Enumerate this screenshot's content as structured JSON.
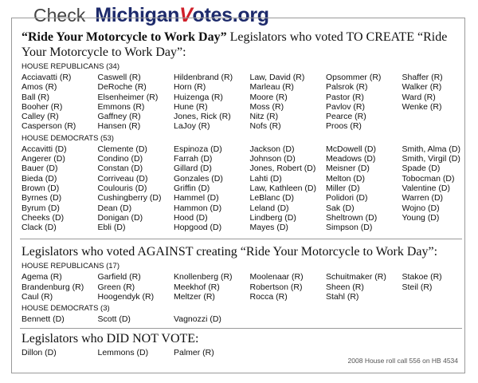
{
  "header": {
    "check": "Check",
    "brand_pre": "Michigan",
    "brand_v": "V",
    "brand_post": "otes.org"
  },
  "sections": [
    {
      "title_bold": "“Ride Your Motorcycle to Work Day”",
      "title": "Legislators who voted TO CREATE “Ride Your Motorcycle to Work Day”:",
      "groups": [
        {
          "label": "HOUSE REPUBLICANS (34)",
          "columns": [
            [
              "Acciavatti (R)",
              "Amos (R)",
              "Ball (R)",
              "Booher (R)",
              "Calley (R)",
              "Casperson (R)"
            ],
            [
              "Caswell (R)",
              "DeRoche (R)",
              "Elsenheimer (R)",
              "Emmons (R)",
              "Gaffney (R)",
              "Hansen (R)"
            ],
            [
              "Hildenbrand (R)",
              "Horn (R)",
              "Huizenga (R)",
              "Hune (R)",
              "Jones, Rick (R)",
              "LaJoy (R)"
            ],
            [
              "Law, David (R)",
              "Marleau (R)",
              "Moore (R)",
              "Moss (R)",
              "Nitz (R)",
              "Nofs (R)"
            ],
            [
              "Opsommer (R)",
              "Palsrok (R)",
              "Pastor (R)",
              "Pavlov (R)",
              "Pearce (R)",
              "Proos (R)"
            ],
            [
              "Shaffer (R)",
              "Walker (R)",
              "Ward (R)",
              "Wenke (R)"
            ]
          ]
        },
        {
          "label": "HOUSE DEMOCRATS (53)",
          "columns": [
            [
              "Accavitti (D)",
              "Angerer (D)",
              "Bauer (D)",
              "Bieda (D)",
              "Brown (D)",
              "Byrnes (D)",
              "Byrum (D)",
              "Cheeks (D)",
              "Clack (D)"
            ],
            [
              "Clemente (D)",
              "Condino (D)",
              "Constan (D)",
              "Corriveau (D)",
              "Coulouris (D)",
              "Cushingberry (D)",
              "Dean (D)",
              "Donigan (D)",
              "Ebli (D)"
            ],
            [
              "Espinoza (D)",
              "Farrah (D)",
              "Gillard (D)",
              "Gonzales (D)",
              "Griffin (D)",
              "Hammel (D)",
              "Hammon (D)",
              "Hood (D)",
              "Hopgood (D)"
            ],
            [
              "Jackson (D)",
              "Johnson (D)",
              "Jones, Robert (D)",
              "Lahti (D)",
              "Law, Kathleen (D)",
              "LeBlanc (D)",
              "Leland (D)",
              "Lindberg (D)",
              "Mayes (D)"
            ],
            [
              "McDowell (D)",
              "Meadows (D)",
              "Meisner (D)",
              "Melton (D)",
              "Miller (D)",
              "Polidori (D)",
              "Sak (D)",
              "Sheltrown (D)",
              "Simpson (D)"
            ],
            [
              "Smith, Alma (D)",
              "Smith, Virgil (D)",
              "Spade (D)",
              "Tobocman (D)",
              "Valentine (D)",
              "Warren (D)",
              "Wojno (D)",
              "Young (D)"
            ]
          ]
        }
      ]
    },
    {
      "title": "Legislators who voted AGAINST creating “Ride Your Motorcycle to Work Day”:",
      "groups": [
        {
          "label": "HOUSE REPUBLICANS (17)",
          "columns": [
            [
              "Agema (R)",
              "Brandenburg (R)",
              "Caul (R)"
            ],
            [
              "Garfield (R)",
              "Green (R)",
              "Hoogendyk (R)"
            ],
            [
              "Knollenberg (R)",
              "Meekhof (R)",
              "Meltzer (R)"
            ],
            [
              "Moolenaar (R)",
              "Robertson (R)",
              "Rocca (R)"
            ],
            [
              "Schuitmaker (R)",
              "Sheen (R)",
              "Stahl (R)"
            ],
            [
              "Stakoe (R)",
              "Steil (R)"
            ]
          ]
        },
        {
          "label": "HOUSE DEMOCRATS (3)",
          "columns": [
            [
              "Bennett (D)"
            ],
            [
              "Scott (D)"
            ],
            [
              "Vagnozzi (D)"
            ]
          ]
        }
      ]
    },
    {
      "title": "Legislators who DID NOT VOTE:",
      "groups": [
        {
          "columns": [
            [
              "Dillon (D)"
            ],
            [
              "Lemmons (D)"
            ],
            [
              "Palmer (R)"
            ]
          ]
        }
      ]
    }
  ],
  "footer": "2008 House roll call 556 on HB 4534"
}
